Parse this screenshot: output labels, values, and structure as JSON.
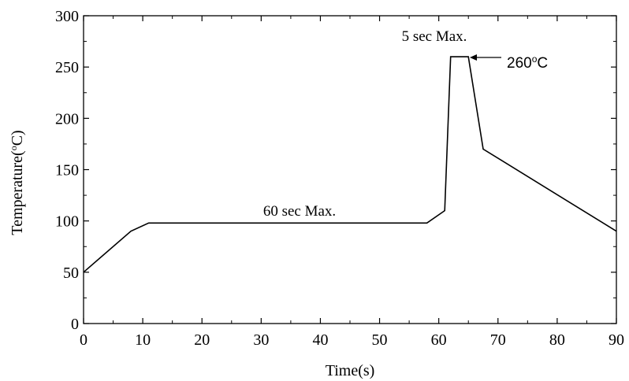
{
  "chart_data": {
    "type": "line",
    "title": "",
    "xlabel": "Time(s)",
    "ylabel_main": "Temperature(",
    "ylabel_sup": "o",
    "ylabel_tail": "C)",
    "xlim": [
      0,
      90
    ],
    "ylim": [
      0,
      300
    ],
    "xticks": [
      "0",
      "10",
      "20",
      "30",
      "40",
      "50",
      "60",
      "70",
      "80",
      "90"
    ],
    "yticks": [
      "0",
      "50",
      "100",
      "150",
      "200",
      "250",
      "300"
    ],
    "grid": false,
    "series": [
      {
        "x": [
          0,
          8,
          11,
          58,
          61,
          62,
          65,
          67.5,
          90
        ],
        "y": [
          50,
          90,
          98,
          98,
          110,
          260,
          260,
          170,
          90
        ]
      }
    ],
    "annotations": {
      "soak": "60 sec Max.",
      "peak_time": "5 sec Max.",
      "peak_temp_main": "260",
      "peak_temp_sup": "o",
      "peak_temp_tail": "C"
    }
  }
}
